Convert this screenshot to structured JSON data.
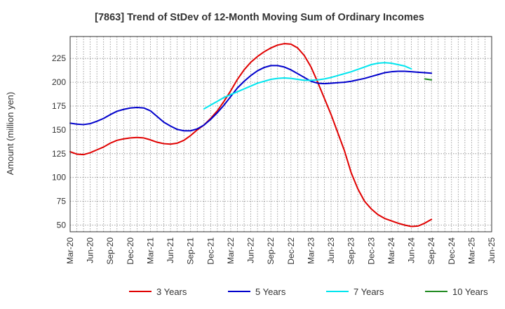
{
  "chart_data": {
    "type": "line",
    "title": "[7863]  Trend of StDev of 12-Month Moving Sum of Ordinary Incomes",
    "xlabel": "",
    "ylabel": "Amount (million yen)",
    "x_ticks": [
      "Mar-20",
      "Jun-20",
      "Sep-20",
      "Dec-20",
      "Mar-21",
      "Jun-21",
      "Sep-21",
      "Dec-21",
      "Mar-22",
      "Jun-22",
      "Sep-22",
      "Dec-22",
      "Mar-23",
      "Jun-23",
      "Sep-23",
      "Dec-23",
      "Mar-24",
      "Jun-24",
      "Sep-24",
      "Dec-24",
      "Mar-25",
      "Jun-25"
    ],
    "y_ticks": [
      50,
      75,
      100,
      125,
      150,
      175,
      200,
      225
    ],
    "ylim": [
      43,
      248
    ],
    "grid": true,
    "legend_position": "bottom",
    "series": [
      {
        "name": "3 Years",
        "color": "#e00000",
        "values": [
          [
            0,
            127
          ],
          [
            1,
            124.5
          ],
          [
            2,
            124
          ],
          [
            3,
            126
          ],
          [
            4,
            129
          ],
          [
            5,
            132
          ],
          [
            6,
            136
          ],
          [
            7,
            139
          ],
          [
            8,
            140.5
          ],
          [
            9,
            141.5
          ],
          [
            10,
            142
          ],
          [
            11,
            141.5
          ],
          [
            12,
            139.5
          ],
          [
            13,
            137
          ],
          [
            14,
            135.5
          ],
          [
            15,
            135
          ],
          [
            16,
            136
          ],
          [
            17,
            139
          ],
          [
            18,
            144
          ],
          [
            19,
            150
          ],
          [
            20,
            155
          ],
          [
            21,
            162
          ],
          [
            22,
            170
          ],
          [
            23,
            180
          ],
          [
            24,
            191
          ],
          [
            25,
            203
          ],
          [
            26,
            213
          ],
          [
            27,
            221
          ],
          [
            28,
            227
          ],
          [
            29,
            232
          ],
          [
            30,
            236
          ],
          [
            31,
            239
          ],
          [
            32,
            240.5
          ],
          [
            33,
            240
          ],
          [
            34,
            236
          ],
          [
            35,
            228
          ],
          [
            36,
            216
          ],
          [
            37,
            200
          ],
          [
            38,
            183
          ],
          [
            39,
            166
          ],
          [
            40,
            147
          ],
          [
            41,
            128
          ],
          [
            42,
            105
          ],
          [
            43,
            88
          ],
          [
            44,
            75
          ],
          [
            45,
            67
          ],
          [
            46,
            61
          ],
          [
            47,
            57
          ],
          [
            48,
            54.5
          ],
          [
            49,
            52
          ],
          [
            50,
            50
          ],
          [
            51,
            48.5
          ],
          [
            52,
            49
          ],
          [
            53,
            52
          ],
          [
            54,
            56
          ]
        ]
      },
      {
        "name": "5 Years",
        "color": "#0000cc",
        "values": [
          [
            0,
            157
          ],
          [
            1,
            156
          ],
          [
            2,
            155.5
          ],
          [
            3,
            156.5
          ],
          [
            4,
            159
          ],
          [
            5,
            162
          ],
          [
            6,
            166
          ],
          [
            7,
            169.5
          ],
          [
            8,
            171.5
          ],
          [
            9,
            173
          ],
          [
            10,
            173.5
          ],
          [
            11,
            173
          ],
          [
            12,
            170
          ],
          [
            13,
            164
          ],
          [
            14,
            158
          ],
          [
            15,
            154
          ],
          [
            16,
            150.5
          ],
          [
            17,
            149
          ],
          [
            18,
            149
          ],
          [
            19,
            151
          ],
          [
            20,
            155
          ],
          [
            21,
            161
          ],
          [
            22,
            168
          ],
          [
            23,
            176
          ],
          [
            24,
            185
          ],
          [
            25,
            194
          ],
          [
            26,
            201
          ],
          [
            27,
            207
          ],
          [
            28,
            212
          ],
          [
            29,
            215.5
          ],
          [
            30,
            217.5
          ],
          [
            31,
            217.5
          ],
          [
            32,
            216
          ],
          [
            33,
            213
          ],
          [
            34,
            209
          ],
          [
            35,
            205
          ],
          [
            36,
            201
          ],
          [
            37,
            199
          ],
          [
            38,
            198.5
          ],
          [
            39,
            199
          ],
          [
            40,
            199.5
          ],
          [
            41,
            200
          ],
          [
            42,
            201
          ],
          [
            43,
            202.5
          ],
          [
            44,
            204
          ],
          [
            45,
            206
          ],
          [
            46,
            208
          ],
          [
            47,
            210
          ],
          [
            48,
            211
          ],
          [
            49,
            211.5
          ],
          [
            50,
            211.5
          ],
          [
            51,
            211
          ],
          [
            52,
            210.5
          ],
          [
            53,
            210
          ],
          [
            54,
            209.5
          ]
        ]
      },
      {
        "name": "7 Years",
        "color": "#00e5ee",
        "values": [
          [
            20,
            172
          ],
          [
            21,
            176
          ],
          [
            22,
            180
          ],
          [
            23,
            184
          ],
          [
            24,
            187
          ],
          [
            25,
            190
          ],
          [
            26,
            193
          ],
          [
            27,
            196
          ],
          [
            28,
            199
          ],
          [
            29,
            201
          ],
          [
            30,
            203
          ],
          [
            31,
            204
          ],
          [
            32,
            204.5
          ],
          [
            33,
            204
          ],
          [
            34,
            203
          ],
          [
            35,
            202
          ],
          [
            36,
            202
          ],
          [
            37,
            202.5
          ],
          [
            38,
            203.5
          ],
          [
            39,
            205
          ],
          [
            40,
            207
          ],
          [
            41,
            209
          ],
          [
            42,
            211
          ],
          [
            43,
            213.5
          ],
          [
            44,
            216
          ],
          [
            45,
            218.5
          ],
          [
            46,
            220
          ],
          [
            47,
            220.5
          ],
          [
            48,
            220
          ],
          [
            49,
            218.5
          ],
          [
            50,
            217
          ],
          [
            51,
            214
          ]
        ]
      },
      {
        "name": "10 Years",
        "color": "#228b22",
        "values": [
          [
            53,
            203.5
          ],
          [
            54,
            202.5
          ]
        ]
      }
    ]
  }
}
